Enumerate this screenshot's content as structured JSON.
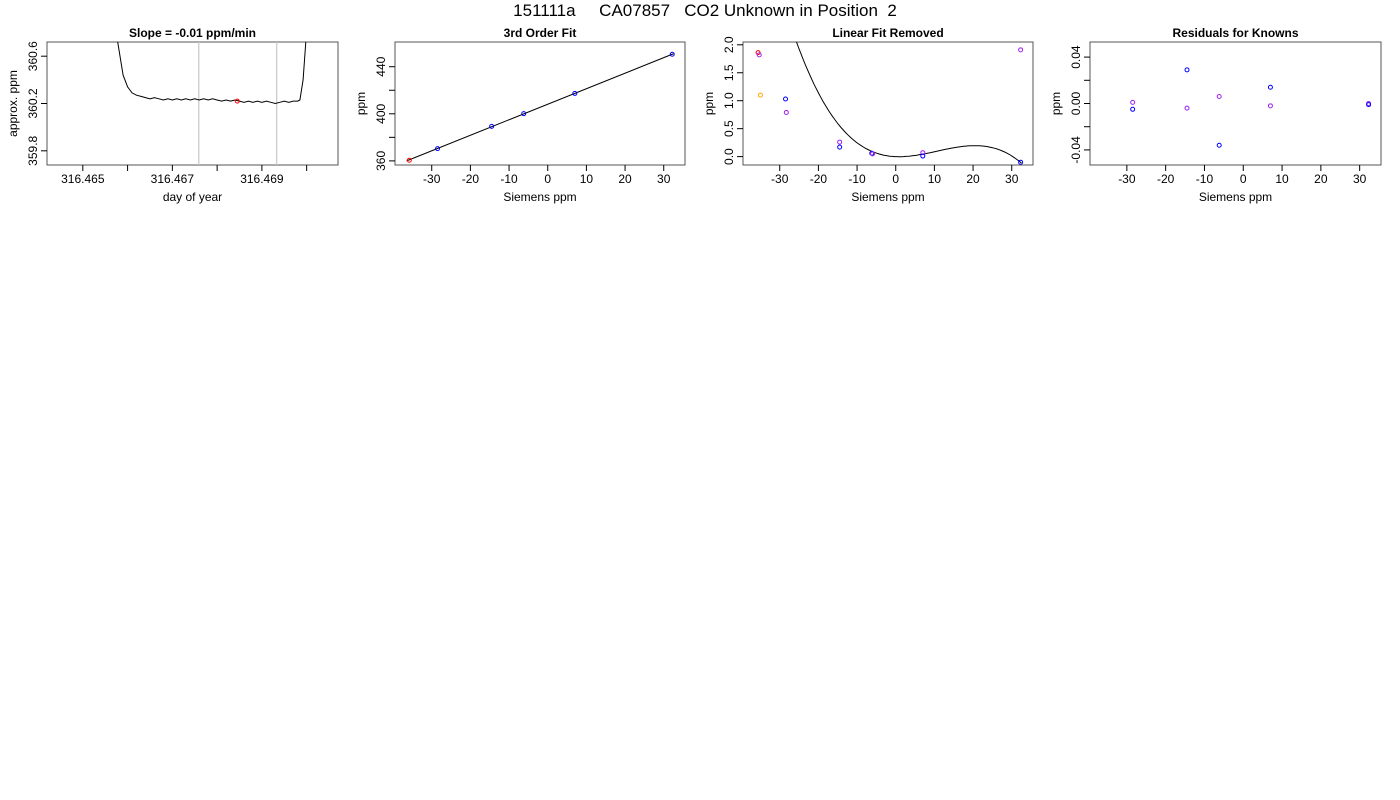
{
  "main_title": "151111a     CA07857   CO2 Unknown in Position  2",
  "colors": {
    "line": "#000000",
    "vline": "#c8c8c8",
    "known": "#0000ff",
    "alt": "#a020f0",
    "unknown": "#ff0000",
    "orange": "#ffa500"
  },
  "chart_data": [
    {
      "type": "line",
      "title": "Slope =  -0.01  ppm/min",
      "xlabel": "day of year",
      "ylabel": "approx. ppm",
      "xlim": [
        316.4642,
        316.4707
      ],
      "ylim": [
        359.68,
        360.72
      ],
      "xticks": [
        316.465,
        316.466,
        316.467,
        316.468,
        316.469,
        316.47
      ],
      "xtick_labels": [
        "316.465",
        "",
        "316.467",
        "",
        "316.469",
        ""
      ],
      "yticks": [
        359.8,
        360.2,
        360.6
      ],
      "ytick_labels": [
        "359.8",
        "360.2",
        "360.6"
      ],
      "vlines": [
        316.46759,
        316.46933
      ],
      "series": [
        {
          "x": [
            316.46578,
            316.4659,
            316.466,
            316.4661,
            316.4662,
            316.4663,
            316.4664,
            316.4665,
            316.4666,
            316.4667,
            316.4668,
            316.4669,
            316.467,
            316.4671,
            316.4672,
            316.4673,
            316.4674,
            316.4675,
            316.4676,
            316.4677,
            316.4678,
            316.4679,
            316.468,
            316.4681,
            316.4682,
            316.4683,
            316.4684,
            316.4685,
            316.4686,
            316.4687,
            316.4688,
            316.4689,
            316.469,
            316.4691,
            316.4692,
            316.4693,
            316.4694,
            316.4695,
            316.4696,
            316.4697,
            316.4698,
            316.46985,
            316.46992,
            316.46998
          ],
          "y": [
            360.72,
            360.44,
            360.34,
            360.29,
            360.27,
            360.26,
            360.25,
            360.24,
            360.25,
            360.24,
            360.23,
            360.24,
            360.23,
            360.24,
            360.23,
            360.24,
            360.23,
            360.24,
            360.23,
            360.24,
            360.23,
            360.24,
            360.23,
            360.22,
            360.23,
            360.22,
            360.23,
            360.22,
            360.21,
            360.22,
            360.21,
            360.22,
            360.21,
            360.22,
            360.21,
            360.2,
            360.21,
            360.22,
            360.21,
            360.22,
            360.22,
            360.23,
            360.4,
            360.72
          ]
        }
      ],
      "markers": [
        {
          "x": 316.46845,
          "y": 360.22,
          "color": "unknown"
        }
      ]
    },
    {
      "type": "scatter",
      "title": "3rd Order Fit",
      "xlabel": "Siemens ppm",
      "ylabel": "ppm",
      "xlim": [
        -39.5,
        35.5
      ],
      "ylim": [
        356.5,
        461
      ],
      "xticks": [
        -30,
        -20,
        -10,
        0,
        10,
        20,
        30
      ],
      "yticks": [
        360,
        380,
        400,
        420,
        440
      ],
      "ytick_labels": [
        "360",
        "",
        "400",
        "",
        "440"
      ],
      "fit_line": {
        "x": [
          -36.5,
          32.5
        ],
        "y": [
          360,
          451
        ]
      },
      "points": [
        {
          "x": -35.8,
          "y": 360.5,
          "color": "unknown"
        },
        {
          "x": -28.5,
          "y": 370.4,
          "color": "known"
        },
        {
          "x": -14.5,
          "y": 389.3,
          "color": "known"
        },
        {
          "x": -6.2,
          "y": 400.1,
          "color": "known"
        },
        {
          "x": 7.0,
          "y": 417.3,
          "color": "known"
        },
        {
          "x": 32.2,
          "y": 450.6,
          "color": "known"
        }
      ]
    },
    {
      "type": "scatter",
      "title": "Linear Fit Removed",
      "xlabel": "Siemens ppm",
      "ylabel": "ppm",
      "xlim": [
        -39.5,
        35.5
      ],
      "ylim": [
        -0.15,
        2.05
      ],
      "xticks": [
        -30,
        -20,
        -10,
        0,
        10,
        20,
        30
      ],
      "yticks": [
        0.0,
        0.5,
        1.0,
        1.5,
        2.0
      ],
      "ytick_labels": [
        "0.0",
        "0.5",
        "1.0",
        "1.5",
        "2.0"
      ],
      "fit_curve": {
        "cubic": [
          0.0,
          -0.00278,
          0.00167,
          -5.21e-05
        ],
        "xrange": [
          -36.6,
          32.5
        ]
      },
      "points": [
        {
          "x": -35.6,
          "y": 1.86,
          "color": "unknown"
        },
        {
          "x": -35.3,
          "y": 1.82,
          "color": "alt"
        },
        {
          "x": -35.0,
          "y": 1.1,
          "color": "orange"
        },
        {
          "x": -28.5,
          "y": 1.03,
          "color": "known"
        },
        {
          "x": -28.3,
          "y": 0.79,
          "color": "alt"
        },
        {
          "x": -14.5,
          "y": 0.26,
          "color": "alt"
        },
        {
          "x": -14.5,
          "y": 0.17,
          "color": "known"
        },
        {
          "x": -6.2,
          "y": 0.06,
          "color": "known"
        },
        {
          "x": -6.0,
          "y": 0.05,
          "color": "alt"
        },
        {
          "x": 7.0,
          "y": 0.07,
          "color": "alt"
        },
        {
          "x": 7.0,
          "y": 0.01,
          "color": "known"
        },
        {
          "x": 32.3,
          "y": 1.91,
          "color": "alt"
        },
        {
          "x": 32.3,
          "y": -0.1,
          "color": "known"
        }
      ]
    },
    {
      "type": "scatter",
      "title": "Residuals for Knowns",
      "xlabel": "Siemens ppm",
      "ylabel": "ppm",
      "xlim": [
        -39.5,
        35.5
      ],
      "ylim": [
        -0.053,
        0.053
      ],
      "xticks": [
        -30,
        -20,
        -10,
        0,
        10,
        20,
        30
      ],
      "yticks": [
        -0.04,
        -0.02,
        0.0,
        0.02,
        0.04
      ],
      "ytick_labels": [
        "-0.04",
        "",
        "0.00",
        "",
        "0.04"
      ],
      "points": [
        {
          "x": -28.5,
          "y": 0.001,
          "color": "alt"
        },
        {
          "x": -28.5,
          "y": -0.005,
          "color": "known"
        },
        {
          "x": -14.5,
          "y": 0.029,
          "color": "known"
        },
        {
          "x": -14.5,
          "y": -0.004,
          "color": "alt"
        },
        {
          "x": -6.2,
          "y": 0.006,
          "color": "alt"
        },
        {
          "x": -6.2,
          "y": -0.036,
          "color": "known"
        },
        {
          "x": 7.0,
          "y": 0.014,
          "color": "known"
        },
        {
          "x": 7.0,
          "y": -0.002,
          "color": "alt"
        },
        {
          "x": 32.3,
          "y": 0.0,
          "color": "alt"
        },
        {
          "x": 32.3,
          "y": -0.001,
          "color": "known"
        }
      ]
    }
  ]
}
